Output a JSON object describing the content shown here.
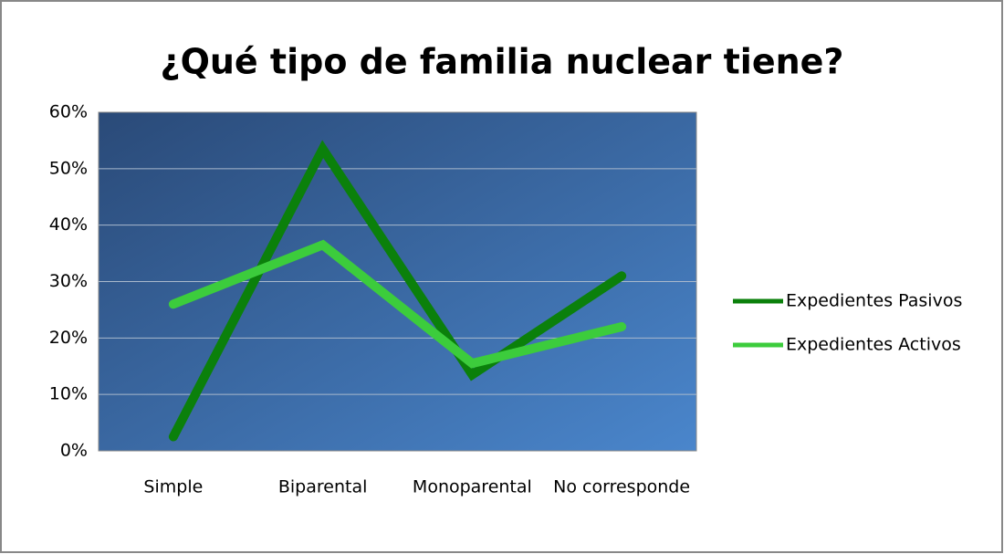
{
  "chart_data": {
    "type": "line",
    "title": "¿Qué tipo de familia nuclear tiene?",
    "categories": [
      "Simple",
      "Biparental",
      "Monoparental",
      "No corresponde"
    ],
    "series": [
      {
        "name": "Expedientes Pasivos",
        "color": "#0b800b",
        "values": [
          2.5,
          53.5,
          13.5,
          31
        ]
      },
      {
        "name": "Expedientes Activos",
        "color": "#3ccc3c",
        "values": [
          26,
          36.5,
          15.5,
          22
        ]
      }
    ],
    "ylim": [
      0,
      60
    ],
    "yticks": [
      {
        "value": 0,
        "label": "0%"
      },
      {
        "value": 10,
        "label": "10%"
      },
      {
        "value": 20,
        "label": "20%"
      },
      {
        "value": 30,
        "label": "30%"
      },
      {
        "value": 40,
        "label": "40%"
      },
      {
        "value": 50,
        "label": "50%"
      },
      {
        "value": 60,
        "label": "60%"
      }
    ],
    "grid": true,
    "legend": "right"
  }
}
